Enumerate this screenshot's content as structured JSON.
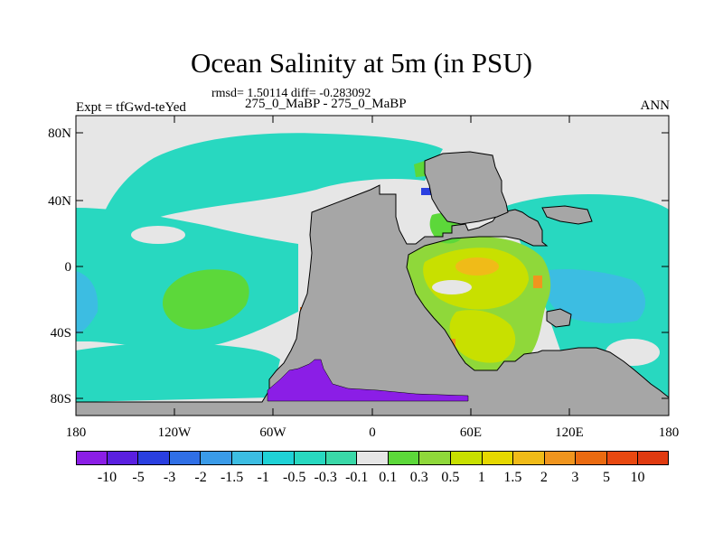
{
  "header": {
    "title": "Ocean Salinity at 5m (in PSU)",
    "stats": "rmsd= 1.50114 diff= -0.283092",
    "subtitle": "275_0_MaBP - 275_0_MaBP",
    "left_label": "Expt = tfGwd-teYed",
    "right_label": "ANN"
  },
  "map": {
    "x_ticks": [
      "180",
      "120W",
      "60W",
      "0",
      "60E",
      "120E",
      "180"
    ],
    "y_ticks": [
      "80N",
      "40N",
      "0",
      "40S",
      "80S"
    ],
    "land_color": "#a6a6a6",
    "no_change_color": "#e6e6e6"
  },
  "colorbar": {
    "labels": [
      "-10",
      "-5",
      "-3",
      "-2",
      "-1.5",
      "-1",
      "-0.5",
      "-0.3",
      "-0.1",
      "0.1",
      "0.3",
      "0.5",
      "1",
      "1.5",
      "2",
      "3",
      "5",
      "10"
    ],
    "colors": [
      "#8b1ee6",
      "#5a1fe0",
      "#2a3fe0",
      "#2f6fe6",
      "#3a9be8",
      "#3cbde2",
      "#1fd2d6",
      "#28d8c0",
      "#3ad8a8",
      "#e6e6e6",
      "#5cd83a",
      "#8fd83a",
      "#c8e000",
      "#e6d800",
      "#f0bb18",
      "#f0951e",
      "#ea6a10",
      "#e84810",
      "#e03a10"
    ]
  }
}
